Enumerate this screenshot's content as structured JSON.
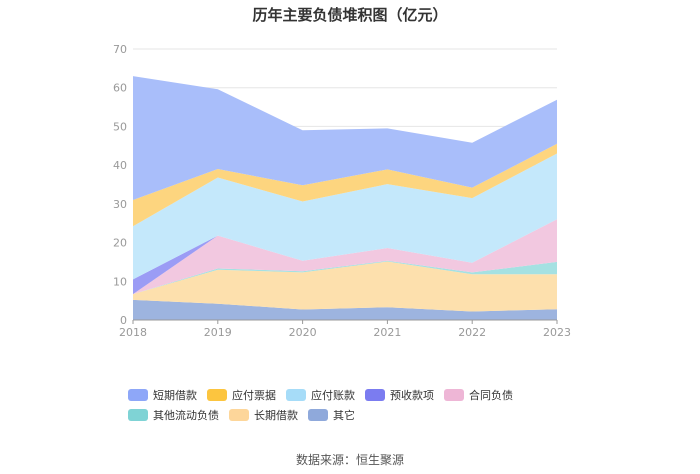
{
  "chart_data": {
    "type": "area",
    "stacked": true,
    "title": "历年主要负债堆积图（亿元）",
    "categories": [
      "2018",
      "2019",
      "2020",
      "2021",
      "2022",
      "2023"
    ],
    "ylim": [
      0,
      70
    ],
    "yticks": [
      0,
      10,
      20,
      30,
      40,
      50,
      60,
      70
    ],
    "grid": true,
    "legend_position": "bottom",
    "series": [
      {
        "name": "其它",
        "color": "#9db4df",
        "values": [
          5.2,
          4.2,
          2.7,
          3.3,
          2.2,
          2.8
        ]
      },
      {
        "name": "长期借款",
        "color": "#fde0ad",
        "values": [
          1.5,
          8.8,
          9.6,
          11.8,
          9.6,
          9.0
        ]
      },
      {
        "name": "其他流动负债",
        "color": "#a5e1e2",
        "values": [
          0.0,
          0.3,
          0.3,
          0.2,
          0.5,
          3.2
        ]
      },
      {
        "name": "合同负债",
        "color": "#f2c8e0",
        "values": [
          0.0,
          8.5,
          2.7,
          3.3,
          2.5,
          11.0
        ]
      },
      {
        "name": "预收款项",
        "color": "#9b9cf5",
        "values": [
          3.8,
          0.0,
          0.0,
          0.0,
          0.0,
          0.0
        ]
      },
      {
        "name": "应付账款",
        "color": "#c4e8fb",
        "values": [
          13.7,
          15.0,
          15.3,
          16.5,
          16.7,
          17.0
        ]
      },
      {
        "name": "应付票据",
        "color": "#fdd57f",
        "values": [
          6.8,
          2.2,
          4.2,
          3.8,
          2.7,
          2.5
        ]
      },
      {
        "name": "短期借款",
        "color": "#a9befa",
        "values": [
          32.0,
          20.6,
          14.2,
          10.6,
          11.6,
          11.4
        ]
      }
    ]
  },
  "legend": [
    {
      "label": "短期借款",
      "color": "#8ea7f8"
    },
    {
      "label": "应付票据",
      "color": "#fcc53f"
    },
    {
      "label": "应付账款",
      "color": "#a6dcf8"
    },
    {
      "label": "预收款项",
      "color": "#7b7cf0"
    },
    {
      "label": "合同负债",
      "color": "#eeb6d6"
    },
    {
      "label": "其他流动负债",
      "color": "#7fd3d5"
    },
    {
      "label": "长期借款",
      "color": "#fdd69a"
    },
    {
      "label": "其它",
      "color": "#8fa9db"
    }
  ],
  "source": "数据来源：恒生聚源"
}
